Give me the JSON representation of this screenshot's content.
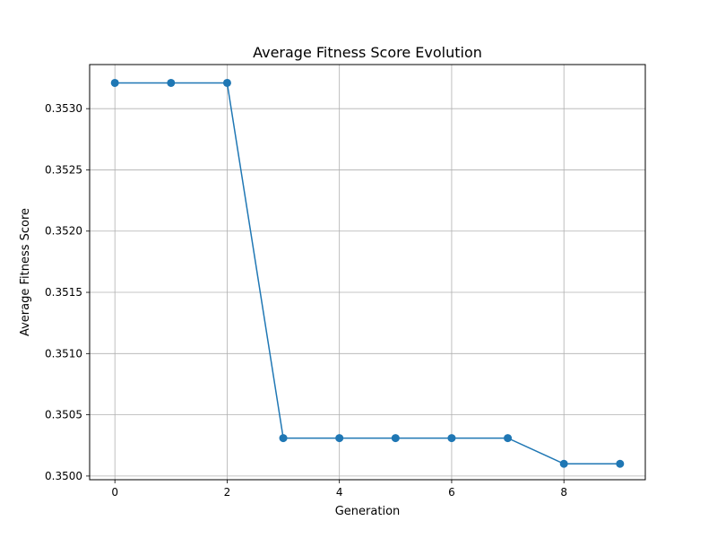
{
  "chart_data": {
    "type": "line",
    "title": "Average Fitness Score Evolution",
    "xlabel": "Generation",
    "ylabel": "Average Fitness Score",
    "x": [
      0,
      1,
      2,
      3,
      4,
      5,
      6,
      7,
      8,
      9
    ],
    "series": [
      {
        "values": [
          0.35321,
          0.35321,
          0.35321,
          0.35031,
          0.35031,
          0.35031,
          0.35031,
          0.35031,
          0.3501,
          0.3501
        ]
      }
    ],
    "xlim": [
      -0.45,
      9.45
    ],
    "ylim": [
      0.34997,
      0.35336
    ],
    "xticks": [
      0,
      2,
      4,
      6,
      8
    ],
    "xtick_labels": [
      "0",
      "2",
      "4",
      "6",
      "8"
    ],
    "yticks": [
      0.35,
      0.3505,
      0.351,
      0.3515,
      0.352,
      0.3525,
      0.353
    ],
    "ytick_labels": [
      "0.3500",
      "0.3505",
      "0.3510",
      "0.3515",
      "0.3520",
      "0.3525",
      "0.3530"
    ],
    "grid": true,
    "marker": "circle",
    "colors": {
      "line": "#1f77b4"
    }
  }
}
